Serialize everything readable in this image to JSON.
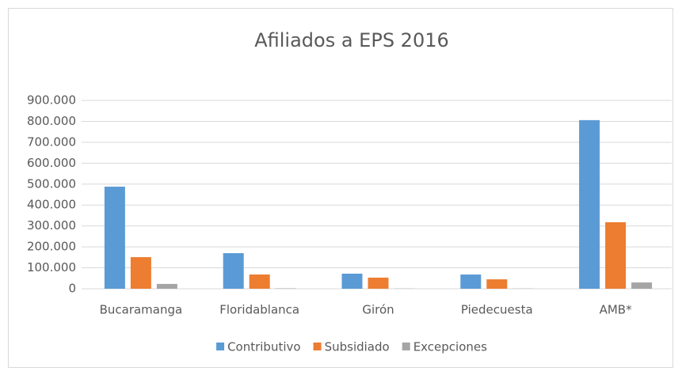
{
  "chart_data": {
    "type": "bar",
    "title": "Afiliados a EPS 2016",
    "categories": [
      "Bucaramanga",
      "Floridablanca",
      "Girón",
      "Piedecuesta",
      "AMB*"
    ],
    "series": [
      {
        "name": "Contributivo",
        "color": "#5b9bd5",
        "values": [
          488000,
          170000,
          72000,
          68000,
          806000
        ]
      },
      {
        "name": "Subsidiado",
        "color": "#ed7d31",
        "values": [
          151000,
          68000,
          53000,
          45000,
          318000
        ]
      },
      {
        "name": "Excepciones",
        "color": "#a5a5a5",
        "values": [
          23000,
          2000,
          1000,
          1000,
          30000
        ]
      }
    ],
    "ylim": [
      0,
      900000
    ],
    "yticks": [
      0,
      {
        "value": 100000,
        "label": "100.000"
      },
      {
        "value": 200000,
        "label": "200.000"
      },
      {
        "value": 300000,
        "label": "300.000"
      },
      {
        "value": 400000,
        "label": "400.000"
      },
      {
        "value": 500000,
        "label": "500.000"
      },
      {
        "value": 600000,
        "label": "600.000"
      },
      {
        "value": 700000,
        "label": "700.000"
      },
      {
        "value": 800000,
        "label": "800.000"
      },
      {
        "value": 900000,
        "label": "900.000"
      }
    ],
    "grid": true,
    "legend": "bottom"
  }
}
